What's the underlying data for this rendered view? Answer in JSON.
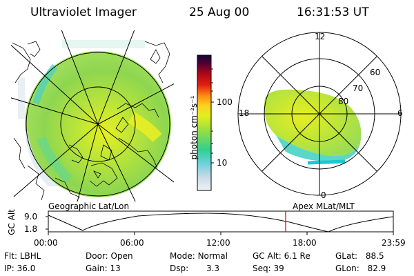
{
  "header": {
    "instrument": "Ultraviolet Imager",
    "date": "25 Aug 00",
    "time": "16:31:53 UT"
  },
  "colorbar": {
    "unit_label": "photon cm⁻²s⁻¹",
    "ticks": [
      "100",
      "10"
    ],
    "colors": [
      "#e8eef4",
      "#c8d8e4",
      "#7ad0dc",
      "#18c8c8",
      "#40d880",
      "#a0e040",
      "#e0ee20",
      "#ffd020",
      "#ff8c10",
      "#e82010",
      "#b00818",
      "#600030",
      "#1a0838"
    ]
  },
  "left_panel": {
    "caption": "Geographic Lat/Lon"
  },
  "right_panel": {
    "caption": "Apex MLat/MLT",
    "mlt_labels": {
      "top": "12",
      "left": "18",
      "right": "6",
      "bottom": "0"
    },
    "lat_labels": [
      "60",
      "70",
      "80"
    ]
  },
  "altitude_plot": {
    "ylabel": "GC Alt",
    "yticks": [
      "9.0",
      "1.8"
    ],
    "xticks": [
      "00:00",
      "06:00",
      "12:00",
      "18:00",
      "23:59"
    ],
    "marker_color": "#cc0000",
    "marker_time_fraction": 0.688
  },
  "info": {
    "flt": {
      "label": "Flt:",
      "value": "LBHL"
    },
    "ip": {
      "label": "IP:",
      "value": "36.0"
    },
    "door": {
      "label": "Door:",
      "value": "Open"
    },
    "gain": {
      "label": "Gain:",
      "value": "13"
    },
    "mode": {
      "label": "Mode:",
      "value": "Normal"
    },
    "dsp": {
      "label": "Dsp:",
      "value": "3.3"
    },
    "gcalt": {
      "label": "GC Alt:",
      "value": "6.1 Re"
    },
    "seq": {
      "label": "Seq:",
      "value": "39"
    },
    "glat": {
      "label": "GLat:",
      "value": "88.5"
    },
    "glon": {
      "label": "GLon:",
      "value": "82.9"
    }
  }
}
